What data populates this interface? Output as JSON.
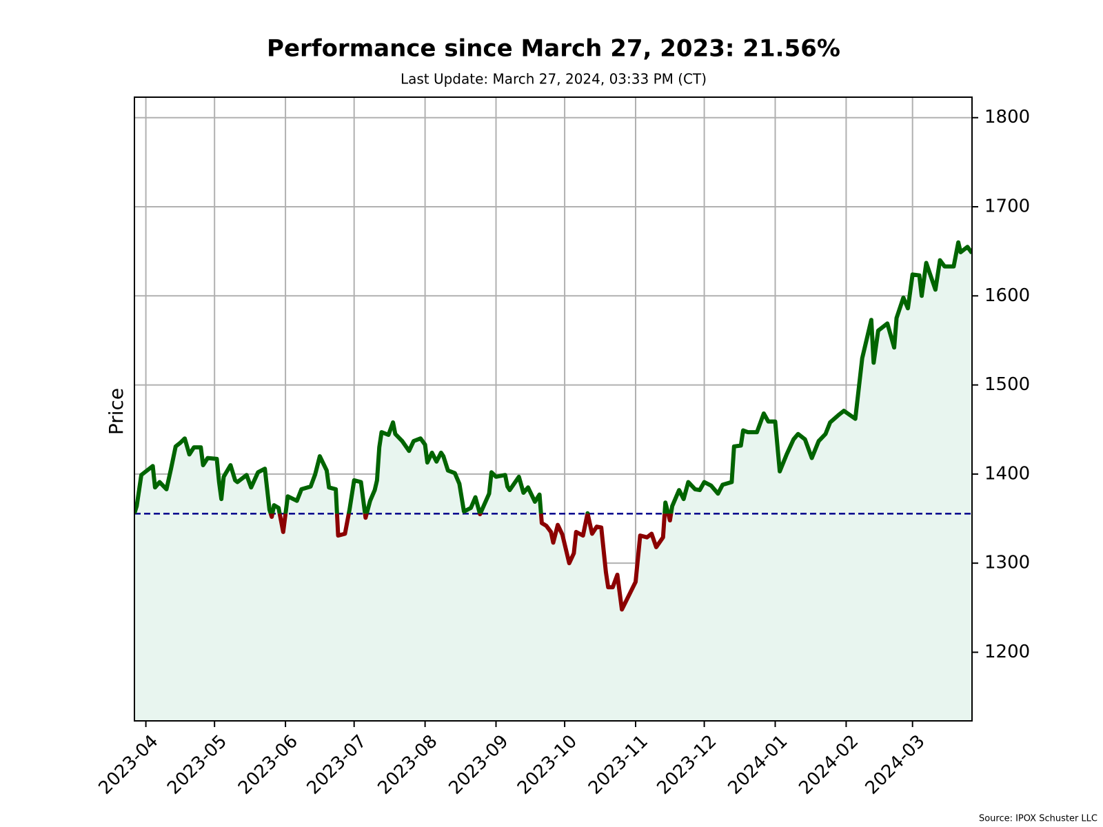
{
  "chart_data": {
    "type": "line",
    "title": "Performance since March 27, 2023: 21.56%",
    "subtitle": "Last Update: March 27, 2024, 03:33 PM (CT)",
    "y_label": "Price",
    "source": "Source: IPOX Schuster LLC",
    "x": [
      0,
      1,
      3,
      8,
      9,
      11,
      14,
      16,
      18,
      20,
      22,
      24,
      26,
      29,
      30,
      32,
      36,
      37,
      38,
      39,
      42,
      44,
      45,
      49,
      51,
      54,
      57,
      59,
      60,
      61,
      63,
      65,
      67,
      71,
      73,
      77,
      79,
      81,
      84,
      85,
      88,
      89,
      92,
      94,
      96,
      99,
      101,
      103,
      105,
      106,
      107,
      108,
      111,
      113,
      114,
      117,
      120,
      122,
      125,
      127,
      128,
      130,
      132,
      134,
      135,
      137,
      140,
      142,
      144,
      147,
      149,
      151,
      155,
      156,
      158,
      162,
      163,
      164,
      168,
      170,
      172,
      175,
      177,
      178,
      180,
      182,
      183,
      185,
      187,
      190,
      192,
      193,
      196,
      198,
      200,
      202,
      204,
      206,
      207,
      209,
      211,
      213,
      219,
      221,
      224,
      226,
      228,
      231,
      232,
      234,
      235,
      238,
      240,
      242,
      245,
      247,
      249,
      252,
      255,
      257,
      261,
      262,
      265,
      266,
      268,
      272,
      275,
      277,
      280,
      282,
      285,
      288,
      290,
      293,
      296,
      299,
      302,
      304,
      308,
      310,
      315,
      318,
      322,
      323,
      325,
      329,
      332,
      333,
      336,
      338,
      340,
      343,
      344,
      346,
      350,
      352,
      354,
      358,
      360,
      361,
      364,
      366
    ],
    "values": [
      1356,
      1364,
      1399,
      1409,
      1385,
      1391,
      1383,
      1406,
      1431,
      1435,
      1440,
      1422,
      1430,
      1430,
      1410,
      1418,
      1417,
      1391,
      1372,
      1397,
      1410,
      1393,
      1391,
      1399,
      1385,
      1402,
      1406,
      1360,
      1352,
      1365,
      1362,
      1335,
      1375,
      1370,
      1383,
      1386,
      1400,
      1420,
      1404,
      1385,
      1383,
      1331,
      1333,
      1360,
      1393,
      1391,
      1351,
      1370,
      1382,
      1393,
      1430,
      1447,
      1444,
      1458,
      1445,
      1437,
      1426,
      1437,
      1440,
      1433,
      1413,
      1424,
      1414,
      1424,
      1420,
      1404,
      1401,
      1389,
      1358,
      1362,
      1374,
      1355,
      1378,
      1402,
      1397,
      1399,
      1386,
      1382,
      1397,
      1379,
      1385,
      1369,
      1377,
      1345,
      1342,
      1335,
      1323,
      1343,
      1332,
      1300,
      1311,
      1335,
      1331,
      1356,
      1333,
      1341,
      1340,
      1290,
      1273,
      1273,
      1287,
      1248,
      1279,
      1331,
      1329,
      1333,
      1318,
      1329,
      1368,
      1348,
      1364,
      1382,
      1372,
      1391,
      1383,
      1382,
      1391,
      1387,
      1378,
      1388,
      1391,
      1431,
      1432,
      1449,
      1447,
      1447,
      1468,
      1459,
      1459,
      1403,
      1422,
      1439,
      1445,
      1439,
      1418,
      1437,
      1445,
      1458,
      1467,
      1471,
      1462,
      1530,
      1573,
      1525,
      1561,
      1569,
      1542,
      1575,
      1598,
      1586,
      1624,
      1623,
      1600,
      1637,
      1607,
      1640,
      1633,
      1633,
      1660,
      1649,
      1655,
      1648
    ],
    "color_above": "#006400",
    "color_below": "#8b0000",
    "fill_color": "#e8f5ef",
    "reference_line": {
      "value": 1355.5,
      "color": "#00008b"
    },
    "xlim": [
      0,
      366
    ],
    "xticks": [
      {
        "value": 5,
        "label": "2023-04"
      },
      {
        "value": 35,
        "label": "2023-05"
      },
      {
        "value": 66,
        "label": "2023-06"
      },
      {
        "value": 96,
        "label": "2023-07"
      },
      {
        "value": 127,
        "label": "2023-08"
      },
      {
        "value": 158,
        "label": "2023-09"
      },
      {
        "value": 188,
        "label": "2023-10"
      },
      {
        "value": 219,
        "label": "2023-11"
      },
      {
        "value": 249,
        "label": "2023-12"
      },
      {
        "value": 280,
        "label": "2024-01"
      },
      {
        "value": 311,
        "label": "2024-02"
      },
      {
        "value": 340,
        "label": "2024-03"
      }
    ],
    "ylim": [
      1123,
      1823
    ],
    "yticks": [
      1200,
      1300,
      1400,
      1500,
      1600,
      1700,
      1800
    ],
    "grid": true
  }
}
